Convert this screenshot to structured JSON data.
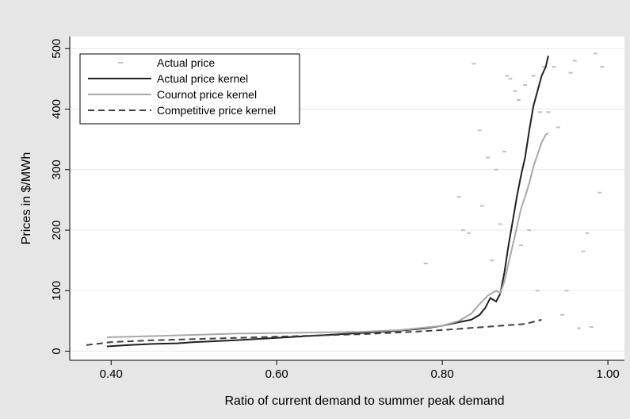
{
  "chart_data": {
    "type": "line",
    "xlabel": "Ratio of current demand to summer peak demand",
    "ylabel": "Prices in $/MWh",
    "xlim": [
      0.35,
      1.02
    ],
    "ylim": [
      -15,
      520
    ],
    "x_ticks": [
      {
        "value": 0.4,
        "label": "0.40"
      },
      {
        "value": 0.6,
        "label": "0.60"
      },
      {
        "value": 0.8,
        "label": "0.80"
      },
      {
        "value": 1.0,
        "label": "1.00"
      }
    ],
    "y_ticks": [
      {
        "value": 0,
        "label": "0"
      },
      {
        "value": 100,
        "label": "100"
      },
      {
        "value": 200,
        "label": "200"
      },
      {
        "value": 300,
        "label": "300"
      },
      {
        "value": 400,
        "label": "400"
      },
      {
        "value": 500,
        "label": "500"
      }
    ],
    "grid": true,
    "legend": "top-left",
    "colors": {
      "background": "#e6e6e6",
      "plot_background": "#ffffff",
      "grid": "#e8e8e8",
      "actual_price": "#c0c0c0",
      "actual_kernel": "#202020",
      "cournot_kernel": "#a8a8a8",
      "competitive_kernel": "#404040"
    },
    "series": [
      {
        "name": "Actual price",
        "style": "scatter",
        "points": [
          [
            0.78,
            145
          ],
          [
            0.82,
            255
          ],
          [
            0.825,
            200
          ],
          [
            0.832,
            195
          ],
          [
            0.838,
            475
          ],
          [
            0.845,
            365
          ],
          [
            0.848,
            240
          ],
          [
            0.855,
            320
          ],
          [
            0.86,
            150
          ],
          [
            0.865,
            300
          ],
          [
            0.87,
            210
          ],
          [
            0.875,
            330
          ],
          [
            0.878,
            455
          ],
          [
            0.882,
            450
          ],
          [
            0.888,
            430
          ],
          [
            0.892,
            415
          ],
          [
            0.895,
            175
          ],
          [
            0.9,
            440
          ],
          [
            0.905,
            200
          ],
          [
            0.91,
            455
          ],
          [
            0.915,
            100
          ],
          [
            0.918,
            395
          ],
          [
            0.923,
            470
          ],
          [
            0.928,
            395
          ],
          [
            0.935,
            470
          ],
          [
            0.94,
            370
          ],
          [
            0.945,
            60
          ],
          [
            0.95,
            100
          ],
          [
            0.955,
            460
          ],
          [
            0.96,
            480
          ],
          [
            0.965,
            38
          ],
          [
            0.97,
            165
          ],
          [
            0.975,
            195
          ],
          [
            0.98,
            40
          ],
          [
            0.985,
            492
          ],
          [
            0.99,
            262
          ],
          [
            0.993,
            470
          ]
        ]
      },
      {
        "name": "Actual price kernel",
        "style": "solid",
        "points": [
          [
            0.395,
            8
          ],
          [
            0.42,
            10
          ],
          [
            0.45,
            12
          ],
          [
            0.48,
            13
          ],
          [
            0.5,
            15
          ],
          [
            0.55,
            18
          ],
          [
            0.6,
            22
          ],
          [
            0.65,
            26
          ],
          [
            0.7,
            30
          ],
          [
            0.75,
            34
          ],
          [
            0.78,
            38
          ],
          [
            0.8,
            42
          ],
          [
            0.82,
            48
          ],
          [
            0.835,
            52
          ],
          [
            0.845,
            60
          ],
          [
            0.852,
            72
          ],
          [
            0.858,
            88
          ],
          [
            0.865,
            82
          ],
          [
            0.87,
            95
          ],
          [
            0.875,
            130
          ],
          [
            0.88,
            175
          ],
          [
            0.885,
            215
          ],
          [
            0.89,
            255
          ],
          [
            0.895,
            290
          ],
          [
            0.9,
            320
          ],
          [
            0.905,
            365
          ],
          [
            0.91,
            405
          ],
          [
            0.915,
            430
          ],
          [
            0.92,
            455
          ],
          [
            0.925,
            470
          ],
          [
            0.928,
            488
          ]
        ]
      },
      {
        "name": "Cournot price kernel",
        "style": "solid",
        "points": [
          [
            0.395,
            23
          ],
          [
            0.45,
            25
          ],
          [
            0.5,
            27
          ],
          [
            0.55,
            29
          ],
          [
            0.6,
            30
          ],
          [
            0.65,
            31
          ],
          [
            0.7,
            32
          ],
          [
            0.75,
            35
          ],
          [
            0.8,
            42
          ],
          [
            0.82,
            50
          ],
          [
            0.835,
            62
          ],
          [
            0.845,
            78
          ],
          [
            0.855,
            92
          ],
          [
            0.865,
            100
          ],
          [
            0.87,
            96
          ],
          [
            0.875,
            115
          ],
          [
            0.88,
            145
          ],
          [
            0.885,
            175
          ],
          [
            0.89,
            205
          ],
          [
            0.895,
            235
          ],
          [
            0.9,
            255
          ],
          [
            0.905,
            278
          ],
          [
            0.91,
            305
          ],
          [
            0.915,
            325
          ],
          [
            0.92,
            345
          ],
          [
            0.925,
            358
          ],
          [
            0.928,
            360
          ]
        ]
      },
      {
        "name": "Competitive price kernel",
        "style": "dashed",
        "points": [
          [
            0.37,
            10
          ],
          [
            0.4,
            15
          ],
          [
            0.45,
            18
          ],
          [
            0.5,
            20
          ],
          [
            0.55,
            22
          ],
          [
            0.6,
            24
          ],
          [
            0.65,
            26
          ],
          [
            0.7,
            28
          ],
          [
            0.75,
            31
          ],
          [
            0.8,
            35
          ],
          [
            0.85,
            40
          ],
          [
            0.9,
            45
          ],
          [
            0.92,
            52
          ]
        ]
      }
    ]
  }
}
